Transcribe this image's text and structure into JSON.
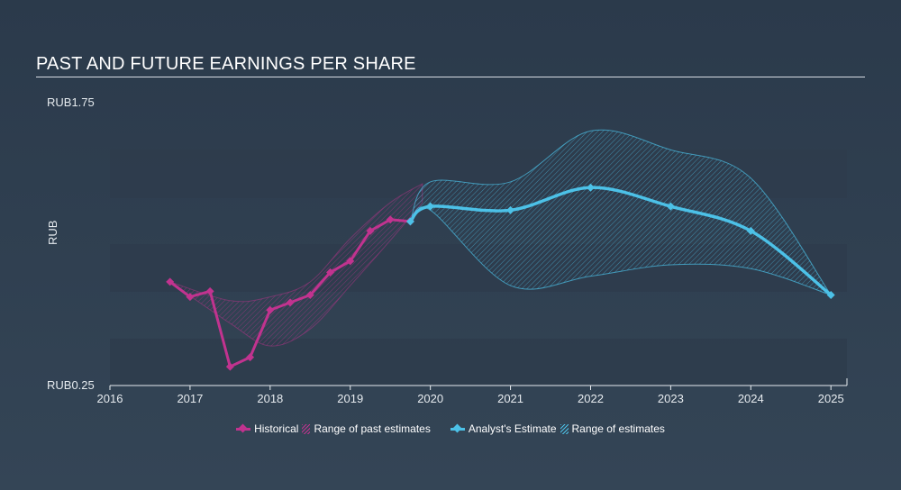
{
  "title": "PAST AND FUTURE EARNINGS PER SHARE",
  "colors": {
    "historical": "#c1338f",
    "historical_fill": "#c1338f",
    "estimate": "#4cc1e7",
    "estimate_fill": "#4cc1e7",
    "band": "#2e3c4c",
    "axis": "#e6ebef"
  },
  "chart_data": {
    "type": "line",
    "ylabel": "RUB",
    "y_tick_labels": [
      "RUB1.75",
      "RUB0.25"
    ],
    "ylim": [
      0.25,
      1.75
    ],
    "xlim": [
      2016.0,
      2025.2
    ],
    "x_ticks": [
      2016,
      2017,
      2018,
      2019,
      2020,
      2021,
      2022,
      2023,
      2024,
      2025
    ],
    "x_tick_labels": [
      "2016",
      "2017",
      "2018",
      "2019",
      "2020",
      "2021",
      "2022",
      "2023",
      "2024",
      "2025"
    ],
    "legend_placement": "bottom-center",
    "legend": {
      "historical": "Historical",
      "past_range": "Range of past estimates",
      "estimate": "Analyst's Estimate",
      "future_range": "Range of estimates"
    },
    "series": [
      {
        "name": "Historical",
        "points": [
          [
            2016.75,
            0.8
          ],
          [
            2017.0,
            0.72
          ],
          [
            2017.25,
            0.75
          ],
          [
            2017.5,
            0.35
          ],
          [
            2017.75,
            0.4
          ],
          [
            2018.0,
            0.65
          ],
          [
            2018.25,
            0.69
          ],
          [
            2018.5,
            0.73
          ],
          [
            2018.75,
            0.85
          ],
          [
            2019.0,
            0.91
          ],
          [
            2019.25,
            1.07
          ],
          [
            2019.5,
            1.13
          ],
          [
            2019.75,
            1.12
          ]
        ]
      },
      {
        "name": "Analyst's Estimate",
        "points": [
          [
            2019.75,
            1.12
          ],
          [
            2020.0,
            1.2
          ],
          [
            2021.0,
            1.18
          ],
          [
            2022.0,
            1.3
          ],
          [
            2023.0,
            1.2
          ],
          [
            2024.0,
            1.07
          ],
          [
            2025.0,
            0.73
          ]
        ]
      }
    ],
    "past_range": {
      "upper": [
        [
          2016.75,
          0.8
        ],
        [
          2017.5,
          0.7
        ],
        [
          2018.0,
          0.72
        ],
        [
          2018.5,
          0.8
        ],
        [
          2019.0,
          1.03
        ],
        [
          2019.5,
          1.22
        ],
        [
          2019.9,
          1.32
        ]
      ],
      "lower": [
        [
          2016.75,
          0.8
        ],
        [
          2017.5,
          0.58
        ],
        [
          2018.0,
          0.46
        ],
        [
          2018.5,
          0.55
        ],
        [
          2019.0,
          0.78
        ],
        [
          2019.5,
          1.02
        ],
        [
          2019.9,
          1.22
        ]
      ]
    },
    "future_range": {
      "upper": [
        [
          2019.75,
          1.12
        ],
        [
          2020.0,
          1.33
        ],
        [
          2021.0,
          1.33
        ],
        [
          2022.0,
          1.6
        ],
        [
          2023.0,
          1.5
        ],
        [
          2024.0,
          1.35
        ],
        [
          2025.0,
          0.73
        ]
      ],
      "lower": [
        [
          2019.75,
          1.12
        ],
        [
          2020.0,
          1.18
        ],
        [
          2021.0,
          0.78
        ],
        [
          2022.0,
          0.83
        ],
        [
          2023.0,
          0.89
        ],
        [
          2024.0,
          0.87
        ],
        [
          2025.0,
          0.73
        ]
      ]
    }
  }
}
